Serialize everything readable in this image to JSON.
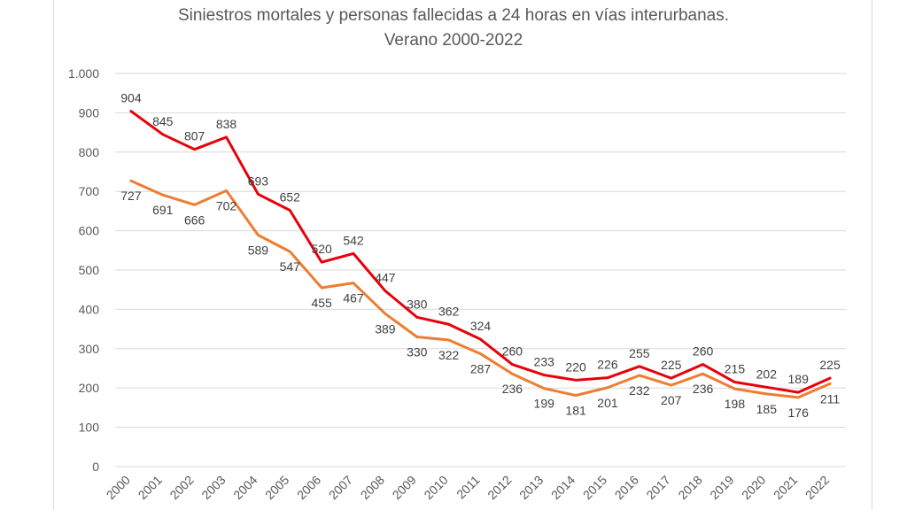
{
  "chart_data": {
    "type": "line",
    "title_line1": "Siniestros mortales y personas fallecidas a 24 horas en vías interurbanas.",
    "title_line2": "Verano 2000-2022",
    "xlabel": "",
    "ylabel": "",
    "ylim": [
      0,
      1000
    ],
    "yticks": [
      0,
      100,
      200,
      300,
      400,
      500,
      600,
      700,
      800,
      900,
      1000
    ],
    "ytick_labels": [
      "0",
      "100",
      "200",
      "300",
      "400",
      "500",
      "600",
      "700",
      "800",
      "900",
      "1.000"
    ],
    "grid": true,
    "legend": "none",
    "categories": [
      "2000",
      "2001",
      "2002",
      "2003",
      "2004",
      "2005",
      "2006",
      "2007",
      "2008",
      "2009",
      "2010",
      "2011",
      "2012",
      "2013",
      "2014",
      "2015",
      "2016",
      "2017",
      "2018",
      "2019",
      "2020",
      "2021",
      "2022"
    ],
    "series": [
      {
        "color": "#e8000b",
        "label_position": "above",
        "values": [
          904,
          845,
          807,
          838,
          693,
          652,
          520,
          542,
          447,
          380,
          362,
          324,
          260,
          233,
          220,
          226,
          255,
          225,
          260,
          215,
          202,
          189,
          225
        ]
      },
      {
        "color": "#ed7d31",
        "label_position": "below",
        "values": [
          727,
          691,
          666,
          702,
          589,
          547,
          455,
          467,
          389,
          330,
          322,
          287,
          236,
          199,
          181,
          201,
          232,
          207,
          236,
          198,
          185,
          176,
          211
        ]
      }
    ]
  }
}
